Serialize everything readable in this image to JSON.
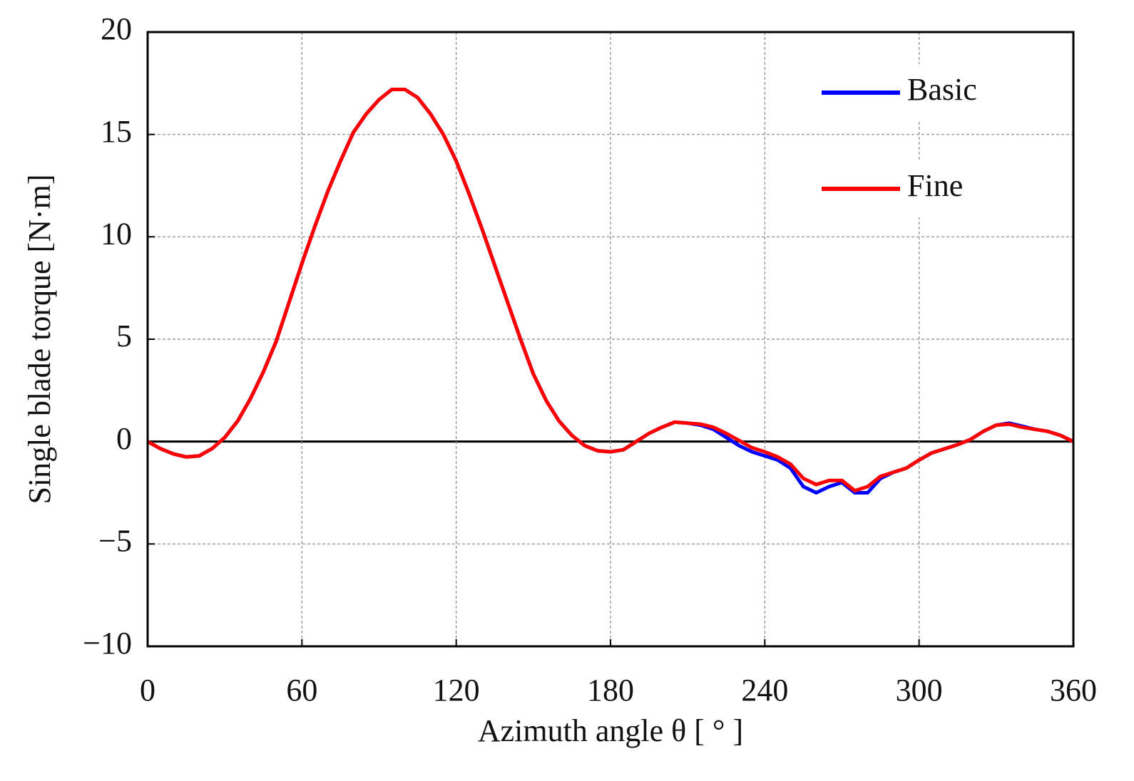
{
  "chart_data": {
    "type": "line",
    "xlabel": "Azimuth angle θ [ ° ]",
    "ylabel": "Single blade torque [N·m]",
    "x": [
      0,
      5,
      10,
      15,
      20,
      25,
      30,
      35,
      40,
      45,
      50,
      55,
      60,
      65,
      70,
      75,
      80,
      85,
      90,
      95,
      100,
      105,
      110,
      115,
      120,
      125,
      130,
      135,
      140,
      145,
      150,
      155,
      160,
      165,
      170,
      175,
      180,
      185,
      190,
      195,
      200,
      205,
      210,
      215,
      220,
      225,
      230,
      235,
      240,
      245,
      250,
      255,
      260,
      265,
      270,
      275,
      280,
      285,
      290,
      295,
      300,
      305,
      310,
      315,
      320,
      325,
      330,
      335,
      340,
      345,
      350,
      355,
      360
    ],
    "series": [
      {
        "name": "Basic",
        "color": "#0000ff",
        "values": [
          0,
          -0.35,
          -0.6,
          -0.75,
          -0.7,
          -0.35,
          0.2,
          1.0,
          2.1,
          3.4,
          4.9,
          6.8,
          8.7,
          10.5,
          12.2,
          13.7,
          15.1,
          16.0,
          16.7,
          17.2,
          17.2,
          16.8,
          16.0,
          15.0,
          13.7,
          12.1,
          10.4,
          8.6,
          6.8,
          5.0,
          3.3,
          2.0,
          1.0,
          0.3,
          -0.2,
          -0.45,
          -0.5,
          -0.4,
          0,
          0.4,
          0.7,
          0.95,
          0.9,
          0.8,
          0.6,
          0.2,
          -0.2,
          -0.5,
          -0.7,
          -0.9,
          -1.3,
          -2.2,
          -2.5,
          -2.2,
          -2.0,
          -2.5,
          -2.5,
          -1.8,
          -1.5,
          -1.3,
          -0.9,
          -0.55,
          -0.35,
          -0.15,
          0.1,
          0.5,
          0.8,
          0.9,
          0.75,
          0.6,
          0.5,
          0.3,
          0
        ]
      },
      {
        "name": "Fine",
        "color": "#ff0000",
        "values": [
          0,
          -0.35,
          -0.6,
          -0.75,
          -0.7,
          -0.35,
          0.2,
          1.0,
          2.1,
          3.4,
          4.9,
          6.8,
          8.7,
          10.5,
          12.2,
          13.7,
          15.1,
          16.0,
          16.7,
          17.2,
          17.2,
          16.8,
          16.0,
          15.0,
          13.7,
          12.1,
          10.4,
          8.6,
          6.8,
          5.0,
          3.3,
          2.0,
          1.0,
          0.3,
          -0.2,
          -0.45,
          -0.5,
          -0.4,
          0,
          0.4,
          0.7,
          0.95,
          0.9,
          0.85,
          0.7,
          0.4,
          0.05,
          -0.3,
          -0.5,
          -0.75,
          -1.1,
          -1.8,
          -2.1,
          -1.9,
          -1.9,
          -2.4,
          -2.2,
          -1.7,
          -1.5,
          -1.3,
          -0.9,
          -0.55,
          -0.35,
          -0.15,
          0.1,
          0.5,
          0.8,
          0.85,
          0.7,
          0.6,
          0.5,
          0.3,
          0
        ]
      }
    ],
    "xlim": [
      0,
      360
    ],
    "xticks": [
      0,
      60,
      120,
      180,
      240,
      300,
      360
    ],
    "ylim": [
      -10,
      20
    ],
    "yticks": [
      {
        "value": -10,
        "label": "−10"
      },
      {
        "value": -5,
        "label": "−5"
      },
      0,
      5,
      10,
      15,
      20
    ],
    "grid": true,
    "legend": "upper right"
  }
}
